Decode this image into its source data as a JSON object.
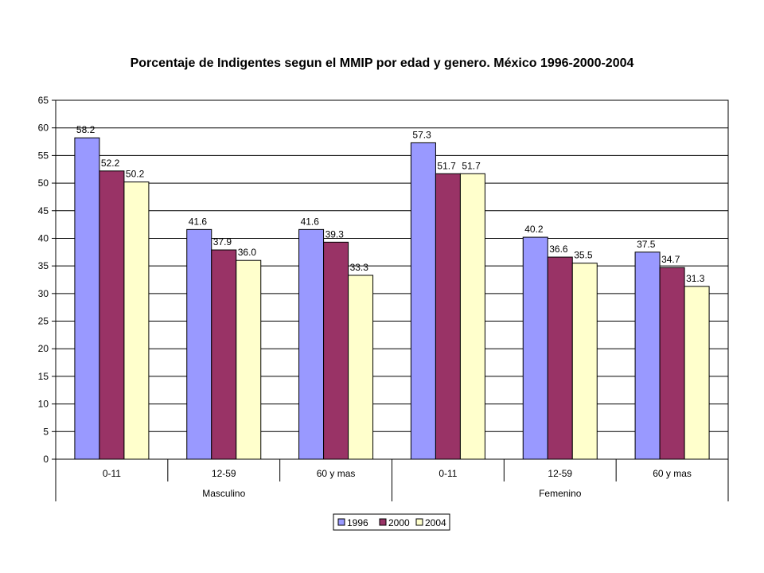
{
  "chart_data": {
    "type": "bar",
    "title": "Porcentaje de Indigentes segun el MMIP por edad y genero. México 1996-2000-2004",
    "groups": [
      {
        "label": "Masculino",
        "categories": [
          "0-11",
          "12-59",
          "60 y mas"
        ]
      },
      {
        "label": "Femenino",
        "categories": [
          "0-11",
          "12-59",
          "60 y mas"
        ]
      }
    ],
    "categories": [
      "0-11",
      "12-59",
      "60 y mas",
      "0-11",
      "12-59",
      "60 y mas"
    ],
    "series": [
      {
        "name": "1996",
        "color": "#9999FF",
        "values": [
          58.2,
          41.6,
          41.6,
          57.3,
          40.2,
          37.5
        ],
        "labels": [
          "58.2",
          "41.6",
          "41.6",
          "57.3",
          "40.2",
          "37.5"
        ]
      },
      {
        "name": "2000",
        "color": "#993366",
        "values": [
          52.2,
          37.9,
          39.3,
          51.7,
          36.6,
          34.7
        ],
        "labels": [
          "52.2",
          "37.9",
          "39.3",
          "51.7",
          "36.6",
          "34.7"
        ]
      },
      {
        "name": "2004",
        "color": "#FFFFCC",
        "values": [
          50.2,
          36.0,
          33.3,
          51.7,
          35.5,
          31.3
        ],
        "labels": [
          "50.2",
          "36.0",
          "33.3",
          "51.7",
          "35.5",
          "31.3"
        ]
      }
    ],
    "ylim": [
      0,
      65
    ],
    "yticks": [
      "0",
      "5",
      "10",
      "15",
      "20",
      "25",
      "30",
      "35",
      "40",
      "45",
      "50",
      "55",
      "60",
      "65"
    ],
    "xlabel": "",
    "ylabel": "",
    "grid": true,
    "legend_position": "bottom"
  }
}
